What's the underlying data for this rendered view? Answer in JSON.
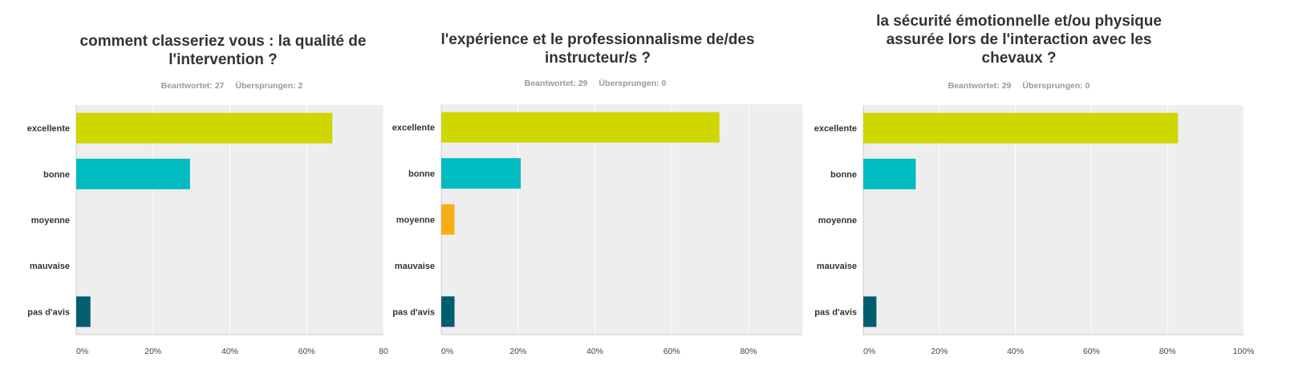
{
  "colors": {
    "plot_bg": "#eeeeee",
    "gridline": "#ffffff",
    "axis": "#cccccc",
    "category_text": "#333333",
    "tick_text": "#444444",
    "title_text": "#333333",
    "meta_text": "#999999",
    "excellente": "#cfd600",
    "bonne": "#00bcc0",
    "moyenne": "#f9ad17",
    "mauvaise": "#d25f90",
    "pas_avis": "#025d6f"
  },
  "charts": [
    {
      "title": "comment classeriez vous : la qualité de l'intervention ?",
      "answered_label": "Beantwortet: 27",
      "skipped_label": "Übersprungen: 2"
    },
    {
      "title": "l'expérience et le professionnalisme de/des instructeur/s ?",
      "answered_label": "Beantwortet: 29",
      "skipped_label": "Übersprungen: 0"
    },
    {
      "title": "la sécurité émotionnelle et/ou physique assurée lors de l'interaction avec les chevaux ?",
      "answered_label": "Beantwortet: 29",
      "skipped_label": "Übersprungen: 0"
    }
  ],
  "chart_data": [
    {
      "type": "bar",
      "orientation": "horizontal",
      "title": "comment classeriez vous : la qualité de l'intervention ?",
      "categories": [
        "excellente",
        "bonne",
        "moyenne",
        "mauvaise",
        "pas d'avis"
      ],
      "values": [
        66.67,
        29.63,
        0,
        0,
        3.7
      ],
      "value_unit": "%",
      "xlim": [
        0,
        80
      ],
      "x_ticks": [
        "0%",
        "20%",
        "40%",
        "60%",
        "80"
      ],
      "grid": true
    },
    {
      "type": "bar",
      "orientation": "horizontal",
      "title": "l'expérience et le professionnalisme de/des instructeur/s ?",
      "categories": [
        "excellente",
        "bonne",
        "moyenne",
        "mauvaise",
        "pas d'avis"
      ],
      "values": [
        72.41,
        20.69,
        3.45,
        0,
        3.45
      ],
      "value_unit": "%",
      "xlim": [
        0,
        94
      ],
      "x_ticks": [
        "0%",
        "20%",
        "40%",
        "60%",
        "80%"
      ],
      "grid": true
    },
    {
      "type": "bar",
      "orientation": "horizontal",
      "title": "la sécurité émotionnelle et/ou physique assurée lors de l'interaction avec les chevaux ?",
      "categories": [
        "excellente",
        "bonne",
        "moyenne",
        "mauvaise",
        "pas d'avis"
      ],
      "values": [
        82.76,
        13.79,
        0,
        0,
        3.45
      ],
      "value_unit": "%",
      "xlim": [
        0,
        100
      ],
      "x_ticks": [
        "0%",
        "20%",
        "40%",
        "60%",
        "80%",
        "100%"
      ],
      "grid": true
    }
  ]
}
